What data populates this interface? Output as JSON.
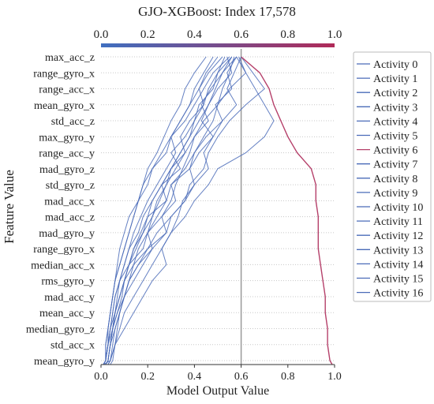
{
  "chart_data": {
    "type": "line",
    "title": "GJO-XGBoost: Index 17,578",
    "xlabel": "Model Output Value",
    "ylabel": "Feature Value",
    "xlim": [
      0,
      1
    ],
    "xticks": [
      "0.0",
      "0.2",
      "0.4",
      "0.6",
      "0.8",
      "1.0"
    ],
    "base_value": 0.6,
    "features": [
      "max_acc_z",
      "range_gyro_x",
      "range_acc_x",
      "mean_gyro_x",
      "std_acc_z",
      "max_gyro_y",
      "range_acc_y",
      "mad_gyro_z",
      "std_gyro_z",
      "mad_acc_x",
      "mad_acc_z",
      "mad_gyro_y",
      "range_gyro_x",
      "median_acc_x",
      "rms_gyro_y",
      "mad_acc_y",
      "mean_acc_y",
      "median_gyro_z",
      "std_acc_x",
      "mean_gyro_y"
    ],
    "legend_position": "right",
    "colors": {
      "line": "#4a6bb8",
      "highlight": "#b5406a",
      "colorbar_start": "#3f6fc0",
      "colorbar_end": "#b02a58"
    },
    "series": [
      {
        "name": "Activity 0",
        "values": [
          0.58,
          0.52,
          0.49,
          0.46,
          0.43,
          0.48,
          0.42,
          0.38,
          0.4,
          0.35,
          0.33,
          0.3,
          0.26,
          0.28,
          0.22,
          0.18,
          0.14,
          0.1,
          0.06,
          0.04,
          0.01
        ]
      },
      {
        "name": "Activity 1",
        "values": [
          0.57,
          0.55,
          0.52,
          0.5,
          0.48,
          0.44,
          0.4,
          0.36,
          0.3,
          0.28,
          0.24,
          0.2,
          0.18,
          0.12,
          0.1,
          0.08,
          0.06,
          0.04,
          0.03,
          0.02,
          0.01
        ]
      },
      {
        "name": "Activity 2",
        "values": [
          0.58,
          0.54,
          0.56,
          0.49,
          0.52,
          0.45,
          0.4,
          0.38,
          0.3,
          0.32,
          0.26,
          0.2,
          0.22,
          0.16,
          0.12,
          0.1,
          0.08,
          0.06,
          0.04,
          0.03,
          0.02
        ]
      },
      {
        "name": "Activity 3",
        "values": [
          0.59,
          0.62,
          0.55,
          0.5,
          0.44,
          0.4,
          0.38,
          0.35,
          0.32,
          0.3,
          0.26,
          0.28,
          0.2,
          0.16,
          0.12,
          0.1,
          0.07,
          0.05,
          0.03,
          0.02,
          0.01
        ]
      },
      {
        "name": "Activity 4",
        "values": [
          0.56,
          0.5,
          0.48,
          0.42,
          0.4,
          0.36,
          0.3,
          0.34,
          0.26,
          0.28,
          0.2,
          0.18,
          0.14,
          0.12,
          0.08,
          0.06,
          0.05,
          0.04,
          0.03,
          0.02,
          0.01
        ]
      },
      {
        "name": "Activity 5",
        "values": [
          0.6,
          0.65,
          0.7,
          0.62,
          0.55,
          0.5,
          0.46,
          0.44,
          0.38,
          0.36,
          0.3,
          0.24,
          0.2,
          0.14,
          0.1,
          0.08,
          0.06,
          0.05,
          0.04,
          0.03,
          0.02
        ]
      },
      {
        "name": "Activity 6",
        "values": [
          0.6,
          0.68,
          0.72,
          0.74,
          0.77,
          0.8,
          0.84,
          0.9,
          0.92,
          0.92,
          0.93,
          0.93,
          0.93,
          0.94,
          0.95,
          0.96,
          0.96,
          0.97,
          0.97,
          0.98,
          0.99
        ]
      },
      {
        "name": "Activity 7",
        "values": [
          0.55,
          0.48,
          0.44,
          0.4,
          0.36,
          0.3,
          0.28,
          0.22,
          0.2,
          0.16,
          0.14,
          0.12,
          0.1,
          0.08,
          0.06,
          0.05,
          0.04,
          0.03,
          0.03,
          0.02,
          0.01
        ]
      },
      {
        "name": "Activity 8",
        "values": [
          0.52,
          0.46,
          0.42,
          0.38,
          0.34,
          0.3,
          0.26,
          0.22,
          0.18,
          0.16,
          0.12,
          0.1,
          0.08,
          0.07,
          0.06,
          0.05,
          0.04,
          0.03,
          0.02,
          0.02,
          0.01
        ]
      },
      {
        "name": "Activity 9",
        "values": [
          0.58,
          0.62,
          0.66,
          0.7,
          0.74,
          0.7,
          0.62,
          0.5,
          0.46,
          0.4,
          0.36,
          0.3,
          0.26,
          0.22,
          0.18,
          0.14,
          0.1,
          0.08,
          0.06,
          0.05,
          0.04
        ]
      },
      {
        "name": "Activity 10",
        "values": [
          0.5,
          0.45,
          0.42,
          0.44,
          0.38,
          0.34,
          0.36,
          0.3,
          0.26,
          0.22,
          0.18,
          0.16,
          0.12,
          0.1,
          0.08,
          0.06,
          0.05,
          0.04,
          0.03,
          0.02,
          0.01
        ]
      },
      {
        "name": "Activity 11",
        "values": [
          0.54,
          0.56,
          0.5,
          0.46,
          0.42,
          0.38,
          0.34,
          0.3,
          0.26,
          0.22,
          0.2,
          0.17,
          0.14,
          0.12,
          0.1,
          0.08,
          0.06,
          0.05,
          0.04,
          0.03,
          0.02
        ]
      },
      {
        "name": "Activity 12",
        "values": [
          0.6,
          0.57,
          0.54,
          0.58,
          0.52,
          0.48,
          0.44,
          0.46,
          0.4,
          0.36,
          0.3,
          0.28,
          0.22,
          0.18,
          0.14,
          0.1,
          0.08,
          0.06,
          0.05,
          0.04,
          0.03
        ]
      },
      {
        "name": "Activity 13",
        "values": [
          0.48,
          0.44,
          0.4,
          0.38,
          0.34,
          0.3,
          0.32,
          0.28,
          0.24,
          0.2,
          0.17,
          0.14,
          0.12,
          0.1,
          0.08,
          0.07,
          0.06,
          0.05,
          0.04,
          0.03,
          0.02
        ]
      },
      {
        "name": "Activity 14",
        "values": [
          0.45,
          0.4,
          0.36,
          0.34,
          0.3,
          0.27,
          0.24,
          0.2,
          0.18,
          0.16,
          0.14,
          0.12,
          0.1,
          0.08,
          0.06,
          0.05,
          0.04,
          0.03,
          0.02,
          0.02,
          0.01
        ]
      },
      {
        "name": "Activity 15",
        "values": [
          0.53,
          0.5,
          0.46,
          0.44,
          0.4,
          0.38,
          0.34,
          0.3,
          0.28,
          0.24,
          0.22,
          0.2,
          0.16,
          0.14,
          0.12,
          0.1,
          0.08,
          0.07,
          0.06,
          0.04,
          0.03
        ]
      },
      {
        "name": "Activity 16",
        "values": [
          0.56,
          0.52,
          0.47,
          0.43,
          0.46,
          0.4,
          0.36,
          0.32,
          0.28,
          0.25,
          0.22,
          0.18,
          0.15,
          0.12,
          0.1,
          0.09,
          0.07,
          0.05,
          0.04,
          0.03,
          0.02
        ]
      }
    ],
    "highlight_series": "Activity 6"
  }
}
